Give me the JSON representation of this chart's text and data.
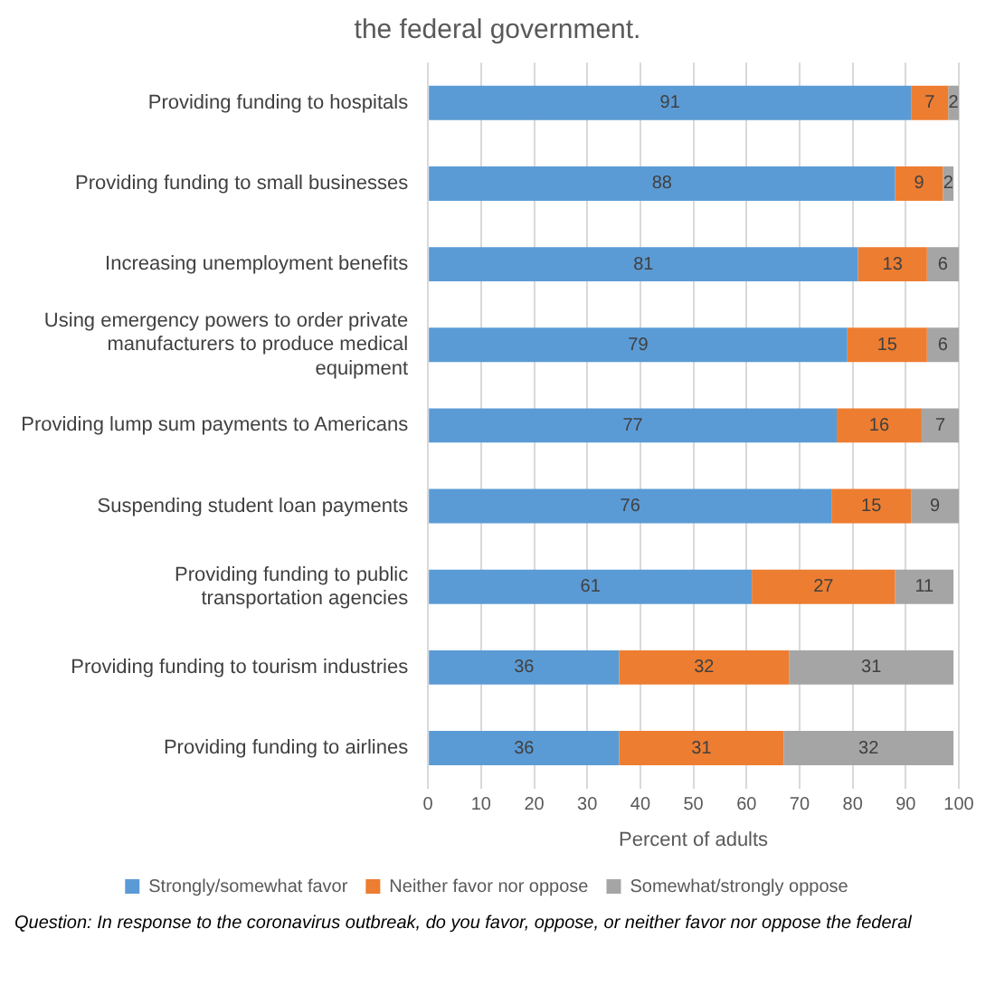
{
  "chart_data": {
    "type": "bar",
    "orientation": "horizontal",
    "stacked": true,
    "title": "the federal government.",
    "xlabel": "Percent of adults",
    "categories": [
      "Providing funding to hospitals",
      "Providing funding to small businesses",
      "Increasing unemployment benefits",
      "Using emergency powers to order private manufacturers to produce medical equipment",
      "Providing lump sum payments to Americans",
      "Suspending student loan payments",
      "Providing funding to public transportation agencies",
      "Providing funding to tourism industries",
      "Providing funding to airlines"
    ],
    "series": [
      {
        "name": "Strongly/somewhat favor",
        "color": "#5b9bd5",
        "values": [
          91,
          88,
          81,
          79,
          77,
          76,
          61,
          36,
          36
        ]
      },
      {
        "name": "Neither favor nor oppose",
        "color": "#ed7d31",
        "values": [
          7,
          9,
          13,
          15,
          16,
          15,
          27,
          32,
          31
        ]
      },
      {
        "name": "Somewhat/strongly oppose",
        "color": "#a5a5a5",
        "values": [
          2,
          2,
          6,
          6,
          7,
          9,
          11,
          31,
          32
        ]
      }
    ],
    "xlim": [
      0,
      100
    ],
    "xticks": [
      0,
      10,
      20,
      30,
      40,
      50,
      60,
      70,
      80,
      90,
      100
    ],
    "grid": "x",
    "legend": "bottom",
    "data_labels": true,
    "annotations": [
      "Question: In response to the coronavirus outbreak, do you favor, oppose, or neither favor nor oppose the federal"
    ]
  }
}
